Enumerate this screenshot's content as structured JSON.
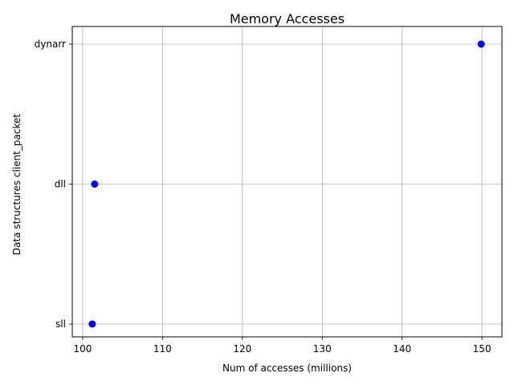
{
  "chart_data": {
    "type": "scatter",
    "title": "Memory Accesses",
    "xlabel": "Num of accesses (millions)",
    "ylabel": "Data structures client_packet",
    "xlim": [
      98.7,
      152.5
    ],
    "xticks": [
      100,
      110,
      120,
      130,
      140,
      150
    ],
    "categories": [
      "sll",
      "dll",
      "dynarr"
    ],
    "grid": true,
    "marker_color": "#0000ff",
    "series": [
      {
        "points": [
          {
            "category": "sll",
            "x": 101.2
          },
          {
            "category": "dll",
            "x": 101.5
          },
          {
            "category": "dynarr",
            "x": 149.9
          }
        ]
      }
    ]
  }
}
